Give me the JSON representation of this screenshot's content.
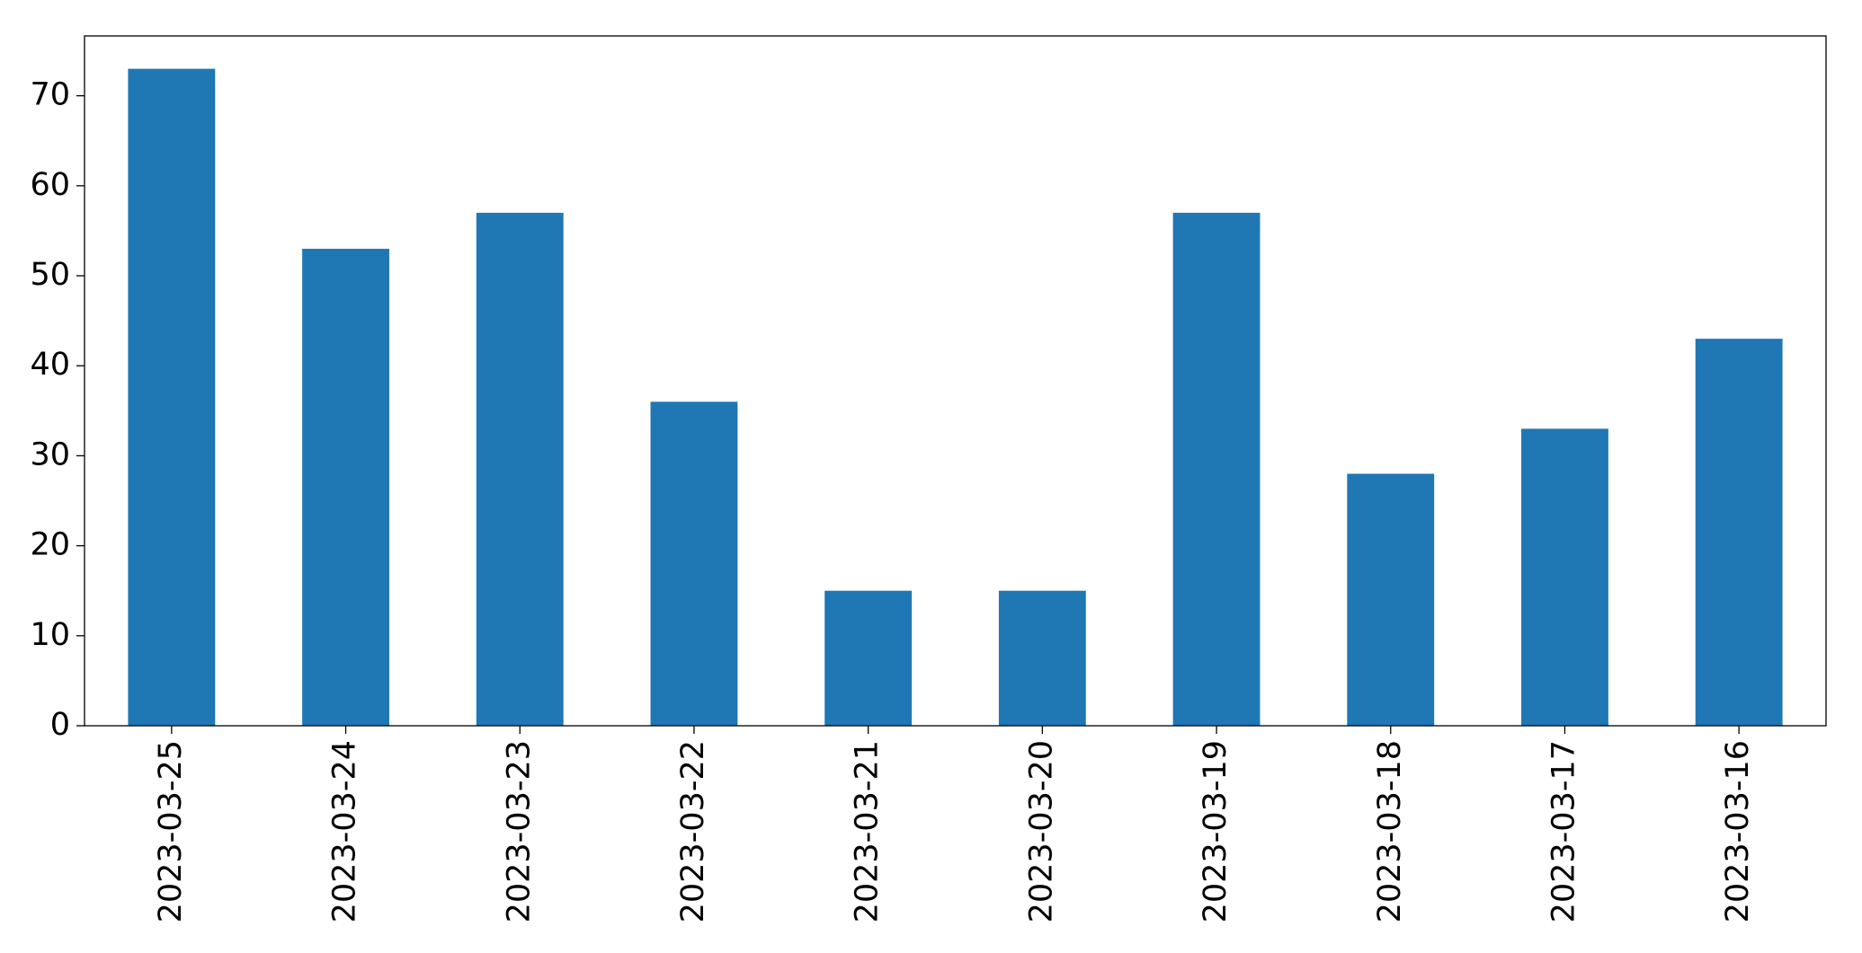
{
  "chart_data": {
    "type": "bar",
    "categories": [
      "2023-03-25",
      "2023-03-24",
      "2023-03-23",
      "2023-03-22",
      "2023-03-21",
      "2023-03-20",
      "2023-03-19",
      "2023-03-18",
      "2023-03-17",
      "2023-03-16"
    ],
    "values": [
      73,
      53,
      57,
      36,
      15,
      15,
      57,
      28,
      33,
      43
    ],
    "color": "#1f77b4",
    "ylim": [
      0,
      76.65
    ],
    "yticks": [
      0,
      10,
      20,
      30,
      40,
      50,
      60,
      70
    ],
    "grid": false
  }
}
